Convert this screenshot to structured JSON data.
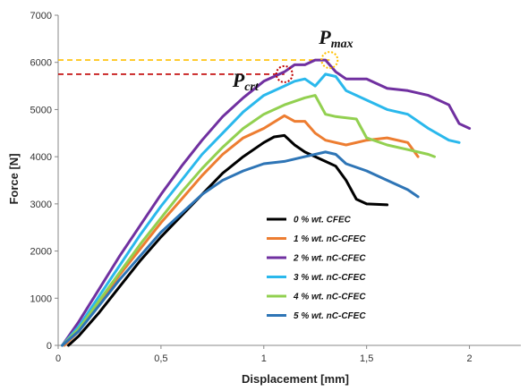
{
  "chart_data": {
    "type": "line",
    "xlabel": "Displacement [mm]",
    "ylabel": "Force [N]",
    "xlim": [
      0,
      2.25
    ],
    "ylim": [
      0,
      7000
    ],
    "x_ticks": [
      0,
      0.5,
      1,
      1.5,
      2
    ],
    "x_tick_labels": [
      "0",
      "0,5",
      "1",
      "1,5",
      "2"
    ],
    "y_ticks": [
      0,
      1000,
      2000,
      3000,
      4000,
      5000,
      6000,
      7000
    ],
    "y_tick_labels": [
      "0",
      "1000",
      "2000",
      "3000",
      "4000",
      "5000",
      "6000",
      "7000"
    ],
    "grid": false,
    "legend_position": "bottom-center",
    "series": [
      {
        "name": "0 % wt. CFEC",
        "color": "#000000",
        "x": [
          0.05,
          0.1,
          0.2,
          0.3,
          0.4,
          0.5,
          0.6,
          0.7,
          0.8,
          0.9,
          1.0,
          1.05,
          1.1,
          1.15,
          1.2,
          1.25,
          1.3,
          1.35,
          1.4,
          1.45,
          1.5,
          1.6
        ],
        "y": [
          0,
          200,
          700,
          1250,
          1800,
          2300,
          2750,
          3200,
          3650,
          4000,
          4300,
          4420,
          4450,
          4250,
          4100,
          4000,
          3900,
          3800,
          3500,
          3100,
          3000,
          2980
        ]
      },
      {
        "name": "1 % wt. nC-CFEC",
        "color": "#ed7d31",
        "x": [
          0.03,
          0.1,
          0.2,
          0.3,
          0.4,
          0.5,
          0.6,
          0.7,
          0.8,
          0.9,
          1.0,
          1.1,
          1.15,
          1.2,
          1.25,
          1.3,
          1.4,
          1.5,
          1.6,
          1.7,
          1.75
        ],
        "y": [
          0,
          300,
          900,
          1500,
          2050,
          2600,
          3100,
          3600,
          4050,
          4400,
          4600,
          4870,
          4750,
          4750,
          4500,
          4350,
          4250,
          4350,
          4400,
          4300,
          4000
        ]
      },
      {
        "name": "2 % wt. nC-CFEC",
        "color": "#7030a0",
        "x": [
          0.02,
          0.1,
          0.2,
          0.3,
          0.4,
          0.5,
          0.6,
          0.7,
          0.8,
          0.9,
          1.0,
          1.1,
          1.15,
          1.2,
          1.25,
          1.3,
          1.35,
          1.4,
          1.5,
          1.6,
          1.7,
          1.8,
          1.9,
          1.95,
          2.0
        ],
        "y": [
          0,
          500,
          1200,
          1900,
          2550,
          3200,
          3800,
          4350,
          4850,
          5250,
          5600,
          5800,
          5950,
          5950,
          6050,
          6050,
          5800,
          5650,
          5650,
          5450,
          5400,
          5300,
          5100,
          4700,
          4600
        ]
      },
      {
        "name": "3 % wt. nC-CFEC",
        "color": "#2ab8ec",
        "x": [
          0.02,
          0.1,
          0.2,
          0.3,
          0.4,
          0.5,
          0.6,
          0.7,
          0.8,
          0.9,
          1.0,
          1.1,
          1.15,
          1.2,
          1.25,
          1.3,
          1.35,
          1.4,
          1.5,
          1.6,
          1.7,
          1.8,
          1.9,
          1.95
        ],
        "y": [
          0,
          400,
          1050,
          1700,
          2350,
          2950,
          3500,
          4050,
          4500,
          4950,
          5300,
          5500,
          5600,
          5650,
          5500,
          5750,
          5700,
          5400,
          5200,
          5000,
          4900,
          4600,
          4350,
          4300
        ]
      },
      {
        "name": "4 % wt. nC-CFEC",
        "color": "#92d050",
        "x": [
          0.02,
          0.1,
          0.2,
          0.3,
          0.4,
          0.5,
          0.6,
          0.7,
          0.8,
          0.9,
          1.0,
          1.1,
          1.2,
          1.25,
          1.3,
          1.35,
          1.45,
          1.5,
          1.6,
          1.7,
          1.8,
          1.83
        ],
        "y": [
          0,
          350,
          950,
          1550,
          2150,
          2700,
          3250,
          3750,
          4200,
          4600,
          4900,
          5100,
          5250,
          5300,
          4900,
          4850,
          4800,
          4400,
          4250,
          4150,
          4050,
          4000
        ]
      },
      {
        "name": "5 % wt. nC-CFEC",
        "color": "#2e75b6",
        "x": [
          0.02,
          0.1,
          0.2,
          0.3,
          0.4,
          0.5,
          0.6,
          0.7,
          0.8,
          0.9,
          1.0,
          1.1,
          1.2,
          1.3,
          1.35,
          1.4,
          1.5,
          1.6,
          1.7,
          1.75
        ],
        "y": [
          0,
          300,
          850,
          1400,
          1900,
          2400,
          2800,
          3200,
          3500,
          3700,
          3850,
          3900,
          4000,
          4100,
          4050,
          3850,
          3700,
          3500,
          3300,
          3150
        ]
      }
    ],
    "annotations": [
      {
        "label_main": "P",
        "label_sub": "max",
        "x": 1.32,
        "y": 6050,
        "color": "#ffc000"
      },
      {
        "label_main": "P",
        "label_sub": "crt",
        "x": 1.1,
        "y": 5750,
        "color": "#c00000"
      }
    ]
  }
}
